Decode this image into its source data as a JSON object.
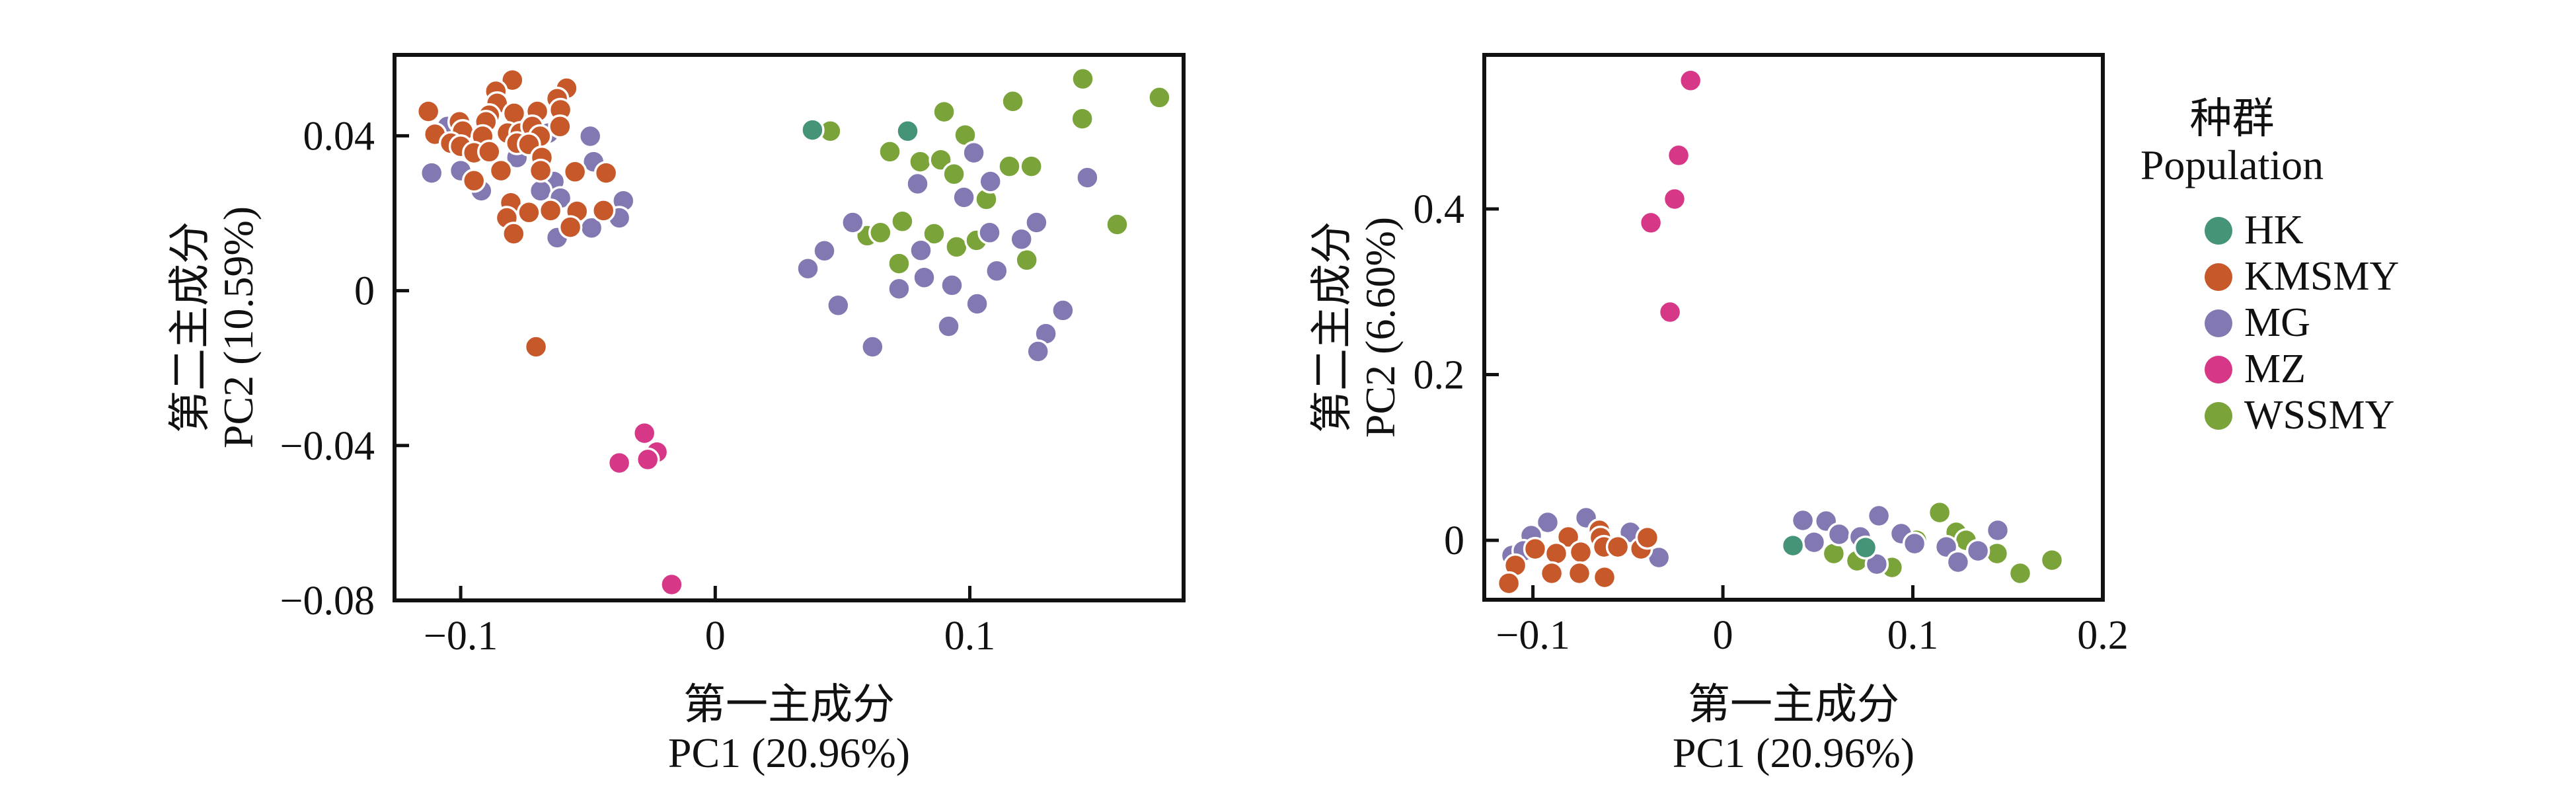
{
  "page": {
    "background": "#ffffff"
  },
  "legend": {
    "title_zh": "种群",
    "title_en": "Population",
    "items": [
      {
        "label": "HK",
        "color": "#459478"
      },
      {
        "label": "KMSMY",
        "color": "#C7582A"
      },
      {
        "label": "MG",
        "color": "#8379B2"
      },
      {
        "label": "MZ",
        "color": "#D63787"
      },
      {
        "label": "WSSMY",
        "color": "#7AA33A"
      }
    ]
  },
  "chart_data": [
    {
      "type": "scatter",
      "title": "",
      "xlabel_zh": "第一主成分",
      "xlabel_en": "PC1 (20.96%)",
      "ylabel_zh": "第二主成分",
      "ylabel_en": "PC2 (10.59%)",
      "xlim": [
        -0.126,
        0.184
      ],
      "ylim": [
        -0.08,
        0.0609
      ],
      "grid": false,
      "xticks": [
        {
          "v": -0.1,
          "label": "−0.1"
        },
        {
          "v": 0,
          "label": "0"
        },
        {
          "v": 0.1,
          "label": "0.1"
        }
      ],
      "yticks": [
        {
          "v": 0.04,
          "label": "0.04"
        },
        {
          "v": 0,
          "label": "0"
        },
        {
          "v": -0.04,
          "label": "−0.04"
        },
        {
          "v": -0.08,
          "label": "−0.08"
        }
      ],
      "series": [
        {
          "name": "WSSMY",
          "color": "#7AA33A",
          "points": [
            [
              0.0452,
              0.0412
            ],
            [
              0.0899,
              0.0462
            ],
            [
              0.0982,
              0.0402
            ],
            [
              0.1169,
              0.0489
            ],
            [
              0.1444,
              0.0547
            ],
            [
              0.1442,
              0.0444
            ],
            [
              0.0686,
              0.0359
            ],
            [
              0.0805,
              0.0333
            ],
            [
              0.0886,
              0.0338
            ],
            [
              0.0938,
              0.0301
            ],
            [
              0.1156,
              0.0321
            ],
            [
              0.1242,
              0.0321
            ],
            [
              0.1065,
              0.0236
            ],
            [
              0.0597,
              0.0142
            ],
            [
              0.0649,
              0.015
            ],
            [
              0.0735,
              0.0179
            ],
            [
              0.086,
              0.0147
            ],
            [
              0.0948,
              0.0113
            ],
            [
              0.1026,
              0.013
            ],
            [
              0.1224,
              0.0079
            ],
            [
              0.0722,
              0.007
            ],
            [
              0.1745,
              0.0499
            ],
            [
              0.1579,
              0.0171
            ]
          ]
        },
        {
          "name": "MG",
          "color": "#8379B2",
          "points": [
            [
              -0.1052,
              0.0424
            ],
            [
              -0.0974,
              0.0376
            ],
            [
              -0.0732,
              0.0447
            ],
            [
              -0.0655,
              0.0407
            ],
            [
              -0.0491,
              0.0399
            ],
            [
              -0.0779,
              0.0344
            ],
            [
              -0.0634,
              0.0282
            ],
            [
              -0.1114,
              0.0304
            ],
            [
              -0.1,
              0.031
            ],
            [
              -0.0478,
              0.0333
            ],
            [
              -0.0919,
              0.0258
            ],
            [
              -0.0686,
              0.0258
            ],
            [
              -0.0608,
              0.0239
            ],
            [
              -0.0361,
              0.0232
            ],
            [
              -0.0377,
              0.0188
            ],
            [
              -0.0486,
              0.0162
            ],
            [
              -0.0621,
              0.0137
            ],
            [
              0.1016,
              0.0356
            ],
            [
              0.0795,
              0.0276
            ],
            [
              0.0977,
              0.0241
            ],
            [
              0.1081,
              0.0282
            ],
            [
              0.1462,
              0.0292
            ],
            [
              0.054,
              0.0176
            ],
            [
              0.0429,
              0.0103
            ],
            [
              0.0364,
              0.0057
            ],
            [
              0.0808,
              0.0104
            ],
            [
              0.0821,
              0.0034
            ],
            [
              0.0722,
              0.0005
            ],
            [
              0.093,
              0.0014
            ],
            [
              0.1078,
              0.015
            ],
            [
              0.1203,
              0.0133
            ],
            [
              0.1106,
              0.0051
            ],
            [
              0.1029,
              -0.0034
            ],
            [
              0.0483,
              -0.0038
            ],
            [
              0.0917,
              -0.0092
            ],
            [
              0.1366,
              -0.0051
            ],
            [
              0.1299,
              -0.0111
            ],
            [
              0.1268,
              -0.0157
            ],
            [
              0.0618,
              -0.0145
            ],
            [
              0.1262,
              0.0176
            ]
          ]
        },
        {
          "name": "KMSMY",
          "color": "#C7582A",
          "points": [
            [
              -0.1127,
              0.0463
            ],
            [
              -0.1101,
              0.0404
            ],
            [
              -0.0797,
              0.0544
            ],
            [
              -0.0862,
              0.0515
            ],
            [
              -0.0857,
              0.0484
            ],
            [
              -0.0888,
              0.0453
            ],
            [
              -0.0901,
              0.0436
            ],
            [
              -0.079,
              0.0458
            ],
            [
              -0.0699,
              0.0463
            ],
            [
              -0.0584,
              0.0523
            ],
            [
              -0.0621,
              0.0496
            ],
            [
              -0.0608,
              0.0467
            ],
            [
              -0.1005,
              0.0436
            ],
            [
              -0.0992,
              0.0412
            ],
            [
              -0.1039,
              0.0381
            ],
            [
              -0.1,
              0.0373
            ],
            [
              -0.0914,
              0.0399
            ],
            [
              -0.0816,
              0.0407
            ],
            [
              -0.0766,
              0.0407
            ],
            [
              -0.0719,
              0.0424
            ],
            [
              -0.0688,
              0.0399
            ],
            [
              -0.061,
              0.0424
            ],
            [
              -0.0948,
              0.0356
            ],
            [
              -0.0888,
              0.0359
            ],
            [
              -0.0779,
              0.0381
            ],
            [
              -0.0732,
              0.0378
            ],
            [
              -0.0681,
              0.0344
            ],
            [
              -0.0686,
              0.031
            ],
            [
              -0.0948,
              0.0284
            ],
            [
              -0.0842,
              0.031
            ],
            [
              -0.0429,
              0.0304
            ],
            [
              -0.0551,
              0.0307
            ],
            [
              -0.0803,
              0.0227
            ],
            [
              -0.0819,
              0.0188
            ],
            [
              -0.0732,
              0.0202
            ],
            [
              -0.0647,
              0.0207
            ],
            [
              -0.0543,
              0.0205
            ],
            [
              -0.0439,
              0.0207
            ],
            [
              -0.0792,
              0.0147
            ],
            [
              -0.0569,
              0.0164
            ],
            [
              -0.0704,
              -0.0145
            ]
          ]
        },
        {
          "name": "HK",
          "color": "#459478",
          "points": [
            [
              0.0382,
              0.0415
            ],
            [
              0.0756,
              0.0412
            ]
          ]
        },
        {
          "name": "MZ",
          "color": "#D63787",
          "points": [
            [
              -0.0278,
              -0.0368
            ],
            [
              -0.0229,
              -0.0417
            ],
            [
              -0.0377,
              -0.0445
            ],
            [
              -0.0265,
              -0.0436
            ],
            [
              -0.0171,
              -0.0759
            ]
          ]
        }
      ]
    },
    {
      "type": "scatter",
      "title": "",
      "xlabel_zh": "第一主成分",
      "xlabel_en": "PC1 (20.96%)",
      "ylabel_zh": "第二主成分",
      "ylabel_en": "PC2 (6.60%)",
      "xlim": [
        -0.1256,
        0.2
      ],
      "ylim": [
        -0.0718,
        0.586
      ],
      "grid": false,
      "xticks": [
        {
          "v": -0.1,
          "label": "−0.1"
        },
        {
          "v": 0,
          "label": "0"
        },
        {
          "v": 0.1,
          "label": "0.1"
        },
        {
          "v": 0.2,
          "label": "0.2"
        }
      ],
      "yticks": [
        {
          "v": 0,
          "label": "0"
        },
        {
          "v": 0.2,
          "label": "0.2"
        },
        {
          "v": 0.4,
          "label": "0.4"
        }
      ],
      "series": [
        {
          "name": "WSSMY",
          "color": "#7AA33A",
          "points": [
            [
              0.0584,
              -0.016
            ],
            [
              0.0706,
              -0.0248
            ],
            [
              0.089,
              -0.0328
            ],
            [
              0.1019,
              0.0
            ],
            [
              0.1141,
              0.0335
            ],
            [
              0.1228,
              0.0096
            ],
            [
              0.128,
              0.0
            ],
            [
              0.1443,
              -0.016
            ],
            [
              0.1565,
              -0.0399
            ],
            [
              0.1732,
              -0.024
            ]
          ]
        },
        {
          "name": "MG",
          "color": "#8379B2",
          "points": [
            [
              -0.0922,
              0.0216
            ],
            [
              -0.072,
              0.0272
            ],
            [
              -0.1009,
              0.0056
            ],
            [
              -0.0487,
              0.0096
            ],
            [
              -0.111,
              -0.0184
            ],
            [
              -0.105,
              -0.0128
            ],
            [
              -0.0337,
              -0.0208
            ],
            [
              0.0421,
              0.024
            ],
            [
              0.0543,
              0.0232
            ],
            [
              0.048,
              -0.0024
            ],
            [
              0.0612,
              0.0072
            ],
            [
              0.0723,
              0.004
            ],
            [
              0.0821,
              0.0296
            ],
            [
              0.081,
              -0.0288
            ],
            [
              0.0939,
              0.008
            ],
            [
              0.1009,
              -0.004
            ],
            [
              0.1176,
              -0.008
            ],
            [
              0.1238,
              -0.0264
            ],
            [
              0.1343,
              -0.0128
            ],
            [
              0.1447,
              0.012
            ]
          ]
        },
        {
          "name": "KMSMY",
          "color": "#C7582A",
          "points": [
            [
              -0.0814,
              0.004
            ],
            [
              -0.065,
              0.012
            ],
            [
              -0.0644,
              0.0032
            ],
            [
              -0.1092,
              -0.0304
            ],
            [
              -0.0988,
              -0.0104
            ],
            [
              -0.0877,
              -0.016
            ],
            [
              -0.0748,
              -0.0144
            ],
            [
              -0.0626,
              -0.008
            ],
            [
              -0.0553,
              -0.008
            ],
            [
              -0.0431,
              -0.0104
            ],
            [
              -0.0901,
              -0.0399
            ],
            [
              -0.0755,
              -0.0399
            ],
            [
              -0.0623,
              -0.0447
            ],
            [
              -0.1127,
              -0.0519
            ],
            [
              -0.0397,
              0.0032
            ]
          ]
        },
        {
          "name": "HK",
          "color": "#459478",
          "points": [
            [
              0.0369,
              -0.0064
            ],
            [
              0.0751,
              -0.0088
            ]
          ]
        },
        {
          "name": "MZ",
          "color": "#D63787",
          "points": [
            [
              -0.017,
              0.555
            ],
            [
              -0.0233,
              0.4647
            ],
            [
              -0.0254,
              0.412
            ],
            [
              -0.0379,
              0.3833
            ],
            [
              -0.0278,
              0.2755
            ]
          ]
        }
      ]
    }
  ]
}
